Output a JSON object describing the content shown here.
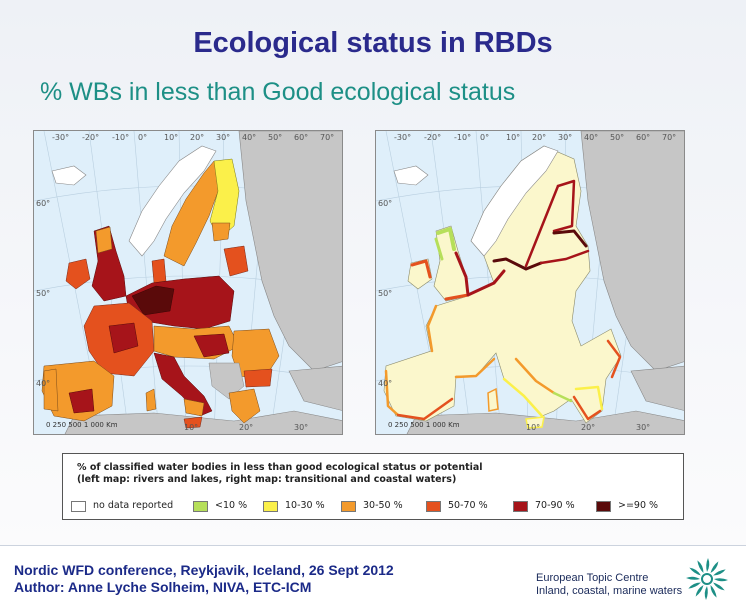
{
  "slide": {
    "title": "Ecological status in RBDs",
    "subtitle": "% WBs in less than Good ecological status"
  },
  "maps": {
    "left": {
      "top_degrees": [
        "-30°",
        "-20°",
        "-10°",
        "0°",
        "10°",
        "20°",
        "30°",
        "40°",
        "50°",
        "60°",
        "70°"
      ],
      "side_degrees": [
        "60°",
        "50°",
        "40°"
      ],
      "bottom_degrees": [
        "10°",
        "20°",
        "30°"
      ],
      "scale": "0  250 500     1 000 Km"
    },
    "right": {
      "top_degrees": [
        "-30°",
        "-20°",
        "-10°",
        "0°",
        "10°",
        "20°",
        "30°",
        "40°",
        "50°",
        "60°",
        "70°"
      ],
      "side_degrees": [
        "60°",
        "50°",
        "40°"
      ],
      "bottom_degrees": [
        "10°",
        "20°",
        "30°"
      ],
      "scale": "0  250 500     1 000 Km"
    }
  },
  "legend": {
    "title_line1": "% of classified water bodies in less than good ecological status or potential",
    "title_line2": "(left map: rivers and lakes, right map: transitional and coastal waters)",
    "items": [
      {
        "label": "no data reported",
        "color": "#ffffff"
      },
      {
        "label": "<10 %",
        "color": "#b6df5a"
      },
      {
        "label": "10-30 %",
        "color": "#fbf04a"
      },
      {
        "label": "30-50 %",
        "color": "#f39a2c"
      },
      {
        "label": "50-70 %",
        "color": "#e4511e"
      },
      {
        "label": "70-90 %",
        "color": "#a6141a"
      },
      {
        "label": ">=90 %",
        "color": "#5a0a0a"
      }
    ]
  },
  "footer": {
    "line1": "Nordic WFD conference, Reykjavik, Iceland, 26 Sept 2012",
    "line2": "Author: Anne Lyche Solheim, NIVA, ETC-ICM",
    "org_name": "European Topic Centre",
    "org_sub": "Inland, coastal, marine waters",
    "logo_icon": "etc-sunburst-logo-icon"
  }
}
